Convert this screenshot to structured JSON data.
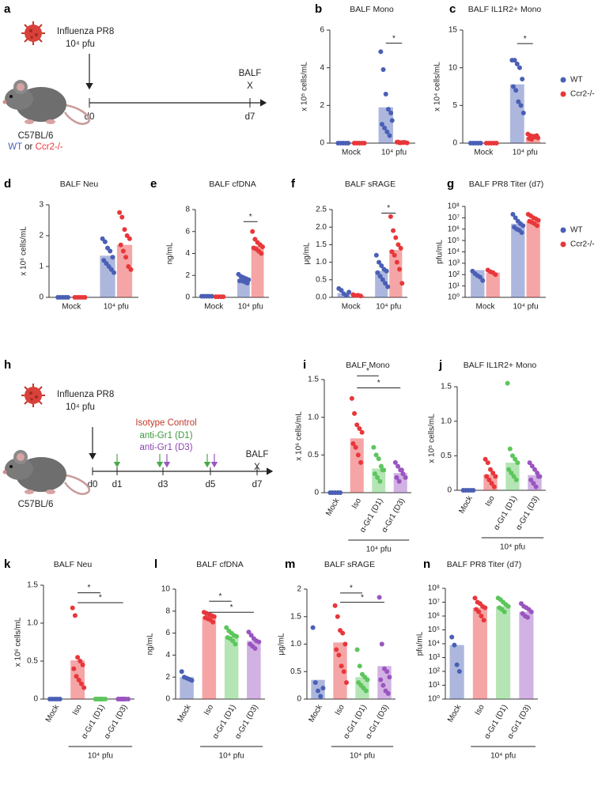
{
  "schematics": [
    {
      "panel": "a",
      "virus": "Influenza PR8",
      "dose": "10⁴ pfu",
      "endpoint": "BALF",
      "endpoint_mark": "X",
      "timepoints": [
        "d0",
        "d7"
      ],
      "strain": "C57BL/6",
      "genotype_wt": "WT",
      "genotype_or": "or",
      "genotype_ko": "Ccr2-/-"
    },
    {
      "panel": "h",
      "virus": "Influenza PR8",
      "dose": "10⁴ pfu",
      "treatments": [
        "Isotype Control",
        "anti-Gr1 (D1)",
        "anti-Gr1 (D3)"
      ],
      "endpoint": "BALF",
      "endpoint_mark": "X",
      "timepoints": [
        "d0",
        "d1",
        "d3",
        "d5",
        "d7"
      ],
      "strain": "C57BL/6"
    }
  ],
  "chart_data": [
    {
      "type": "bar",
      "panel": "b",
      "title": "BALF Mono",
      "y_label": "x 10⁵ cells/mL",
      "categories": [
        "Mock",
        "10⁴ pfu"
      ],
      "ylim": [
        0,
        6
      ],
      "yticks": [
        0,
        2,
        4,
        6
      ],
      "series": [
        {
          "color": "#4a5fb5",
          "values": [
            0,
            1.9
          ],
          "points": [
            [
              0,
              0,
              0,
              0,
              0
            ],
            [
              4.85,
              3.9,
              2.6,
              1.8,
              1.6,
              1.0,
              0.8,
              0.6,
              0.4,
              1.2
            ]
          ]
        },
        {
          "color": "#e8373a",
          "values": [
            0,
            0.03
          ],
          "points": [
            [
              0,
              0,
              0,
              0,
              0
            ],
            [
              0.05,
              0.02,
              0.03,
              0.04,
              0.01,
              0.06,
              0.02,
              0.03
            ]
          ]
        }
      ],
      "significance": [
        {
          "category": 1,
          "label": "*",
          "y": 5.3
        }
      ]
    },
    {
      "type": "bar",
      "panel": "c",
      "title": "BALF IL1R2+ Mono",
      "y_label": "x 10⁴ cells/mL",
      "categories": [
        "Mock",
        "10⁴ pfu"
      ],
      "ylim": [
        0,
        15
      ],
      "yticks": [
        0,
        5,
        10,
        15
      ],
      "legend": true,
      "series": [
        {
          "name": "WT",
          "color": "#4a5fb5",
          "values": [
            0,
            7.8
          ],
          "points": [
            [
              0,
              0,
              0,
              0,
              0
            ],
            [
              11,
              11,
              10.5,
              10,
              8.5,
              7.5,
              7,
              5.5,
              5,
              4
            ]
          ]
        },
        {
          "name": "Ccr2-/-",
          "color": "#e8373a",
          "values": [
            0,
            0.8
          ],
          "points": [
            [
              0,
              0,
              0,
              0,
              0
            ],
            [
              1.2,
              1.0,
              0.9,
              0.8,
              0.7,
              0.6,
              0.5,
              0.9,
              1.0
            ]
          ]
        }
      ],
      "significance": [
        {
          "category": 1,
          "label": "*",
          "y": 13.2
        }
      ]
    },
    {
      "type": "bar",
      "panel": "d",
      "title": "BALF Neu",
      "y_label": "x 10⁶ cells/mL",
      "categories": [
        "Mock",
        "10⁴ pfu"
      ],
      "ylim": [
        0,
        3
      ],
      "yticks": [
        0,
        1,
        2,
        3
      ],
      "series": [
        {
          "color": "#4a5fb5",
          "values": [
            0,
            1.35
          ],
          "points": [
            [
              0,
              0,
              0,
              0,
              0
            ],
            [
              1.9,
              1.8,
              1.6,
              1.5,
              1.3,
              1.2,
              1.1,
              1.0,
              0.9,
              0.8
            ]
          ]
        },
        {
          "color": "#e8373a",
          "values": [
            0,
            1.7
          ],
          "points": [
            [
              0,
              0,
              0,
              0,
              0
            ],
            [
              2.75,
              2.6,
              2.2,
              2.0,
              1.9,
              1.7,
              1.5,
              1.3,
              1.0,
              0.9
            ]
          ]
        }
      ]
    },
    {
      "type": "bar",
      "panel": "e",
      "title": "BALF cfDNA",
      "y_label": "ng/mL",
      "categories": [
        "Mock",
        "10⁴ pfu"
      ],
      "ylim": [
        0,
        8
      ],
      "yticks": [
        0,
        2,
        4,
        6,
        8
      ],
      "series": [
        {
          "color": "#4a5fb5",
          "values": [
            0.1,
            1.7
          ],
          "points": [
            [
              0.1,
              0.1,
              0.1,
              0.1,
              0.1
            ],
            [
              2.1,
              1.9,
              1.8,
              1.7,
              1.6,
              1.5,
              1.5,
              1.4,
              1.3
            ]
          ]
        },
        {
          "color": "#e8373a",
          "values": [
            0.05,
            4.7
          ],
          "points": [
            [
              0.05,
              0.05,
              0.05,
              0.05
            ],
            [
              6.0,
              5.3,
              5.0,
              4.8,
              4.6,
              4.5,
              4.4,
              4.2,
              4.0
            ]
          ]
        }
      ],
      "significance": [
        {
          "category": 1,
          "label": "*",
          "y": 6.9
        }
      ]
    },
    {
      "type": "bar",
      "panel": "f",
      "title": "BALF sRAGE",
      "y_label": "μg/mL",
      "categories": [
        "Mock",
        "10⁴ pfu"
      ],
      "ylim": [
        0,
        2.5
      ],
      "yticks": [
        {
          "value": 0,
          "label": "0.0"
        },
        0.5,
        {
          "value": 1,
          "label": "1.0"
        },
        1.5,
        {
          "value": 2,
          "label": "2.0"
        },
        2.5
      ],
      "series": [
        {
          "color": "#4a5fb5",
          "values": [
            0.12,
            0.75
          ],
          "points": [
            [
              0.25,
              0.2,
              0.1,
              0.05,
              0.15
            ],
            [
              1.2,
              1.0,
              0.9,
              0.8,
              0.75,
              0.7,
              0.6,
              0.5,
              0.4,
              0.3
            ]
          ]
        },
        {
          "color": "#e8373a",
          "values": [
            0.05,
            1.35
          ],
          "points": [
            [
              0.08,
              0.05,
              0.06,
              0.04
            ],
            [
              2.3,
              1.9,
              1.7,
              1.5,
              1.4,
              1.3,
              1.2,
              1.0,
              0.8,
              0.4
            ]
          ]
        }
      ],
      "significance": [
        {
          "category": 1,
          "label": "*",
          "y": 2.4
        }
      ]
    },
    {
      "type": "bar",
      "panel": "g",
      "title": "BALF PR8 Titer (d7)",
      "y_label": "pfu/mL",
      "categories": [
        "Mock",
        "10⁴ pfu"
      ],
      "log_scale": true,
      "ylim": [
        1,
        100000000
      ],
      "legend": true,
      "yticks": [
        {
          "value": 1,
          "label": "10⁰"
        },
        {
          "value": 10,
          "label": "10¹"
        },
        {
          "value": 100,
          "label": "10²"
        },
        {
          "value": 1000,
          "label": "10³"
        },
        {
          "value": 10000,
          "label": "10⁴"
        },
        {
          "value": 100000,
          "label": "10⁵"
        },
        {
          "value": 1000000,
          "label": "10⁶"
        },
        {
          "value": 10000000,
          "label": "10⁷"
        },
        {
          "value": 100000000,
          "label": "10⁸"
        }
      ],
      "series": [
        {
          "name": "WT",
          "color": "#4a5fb5",
          "values": [
            250,
            3000000
          ],
          "points": [
            [
              200,
              120,
              80,
              60,
              30
            ],
            [
              20000000,
              10000000,
              5000000,
              3000000,
              2000000,
              1500000,
              1000000,
              800000,
              500000
            ]
          ]
        },
        {
          "name": "Ccr2-/-",
          "color": "#e8373a",
          "values": [
            150,
            5000000
          ],
          "points": [
            [
              250,
              180,
              150,
              100
            ],
            [
              20000000,
              15000000,
              10000000,
              8000000,
              6000000,
              5000000,
              4000000,
              3000000,
              2000000
            ]
          ]
        }
      ]
    },
    {
      "type": "bar",
      "panel": "i",
      "title": "BALF Mono",
      "y_label": "x 10⁶ cells/mL",
      "categories": [
        "Mock",
        "Iso",
        "α-Gr1 (D1)",
        "α-Gr1 (D3)"
      ],
      "colors": [
        "#4a5fb5",
        "#e8373a",
        "#5cc65c",
        "#9a55c0"
      ],
      "ylim": [
        0,
        1.5
      ],
      "yticks": [
        0,
        0.5,
        {
          "value": 1,
          "label": "1.0"
        },
        1.5
      ],
      "values": [
        0,
        0.72,
        0.32,
        0.26
      ],
      "points": [
        [
          0,
          0,
          0,
          0,
          0
        ],
        [
          1.25,
          1.05,
          0.9,
          0.85,
          0.8,
          0.65,
          0.6,
          0.5,
          0.4
        ],
        [
          0.6,
          0.5,
          0.45,
          0.35,
          0.3,
          0.25,
          0.2,
          0.15,
          0.3
        ],
        [
          0.4,
          0.35,
          0.3,
          0.25,
          0.2,
          0.2,
          0.15,
          0.3
        ]
      ],
      "significance": [
        {
          "from": 1,
          "to": 2,
          "label": "*",
          "y": 1.55
        },
        {
          "from": 1,
          "to": 3,
          "label": "*",
          "y": 1.39
        }
      ],
      "group": {
        "label": "10⁴ pfu",
        "from": 1,
        "to": 3
      }
    },
    {
      "type": "bar",
      "panel": "j",
      "title": "BALF IL1R2+ Mono",
      "y_label": "x 10⁵ cells/mL",
      "categories": [
        "Mock",
        "Iso",
        "α-Gr1 (D1)",
        "α-Gr1 (D3)"
      ],
      "colors": [
        "#4a5fb5",
        "#e8373a",
        "#5cc65c",
        "#9a55c0"
      ],
      "ylim": [
        0,
        1.5
      ],
      "yticks": [
        0,
        0.5,
        {
          "value": 1,
          "label": "1.0"
        },
        1.5
      ],
      "values": [
        0,
        0.23,
        0.4,
        0.22
      ],
      "points": [
        [
          0,
          0,
          0,
          0,
          0
        ],
        [
          0.45,
          0.4,
          0.3,
          0.25,
          0.2,
          0.2,
          0.15,
          0.1,
          0.05
        ],
        [
          1.55,
          0.6,
          0.5,
          0.45,
          0.4,
          0.3,
          0.25,
          0.2,
          0.15
        ],
        [
          0.4,
          0.35,
          0.3,
          0.25,
          0.2,
          0.15,
          0.1,
          0.05,
          0.2
        ]
      ],
      "group": {
        "label": "10⁴ pfu",
        "from": 1,
        "to": 3
      }
    },
    {
      "type": "bar",
      "panel": "k",
      "title": "BALF Neu",
      "y_label": "x 10⁶ cells/mL",
      "categories": [
        "Mock",
        "Iso",
        "α-Gr1 (D1)",
        "α-Gr1 (D3)"
      ],
      "colors": [
        "#4a5fb5",
        "#e8373a",
        "#5cc65c",
        "#9a55c0"
      ],
      "ylim": [
        0,
        1.5
      ],
      "yticks": [
        0,
        0.5,
        {
          "value": 1,
          "label": "1.0"
        },
        1.5
      ],
      "values": [
        0,
        0.51,
        0,
        0
      ],
      "points": [
        [
          0,
          0,
          0,
          0,
          0
        ],
        [
          1.2,
          1.1,
          0.55,
          0.5,
          0.45,
          0.4,
          0.3,
          0.25,
          0.2,
          0.15
        ],
        [
          0,
          0,
          0,
          0,
          0,
          0,
          0,
          0
        ],
        [
          0,
          0,
          0,
          0,
          0,
          0,
          0,
          0
        ]
      ],
      "significance": [
        {
          "from": 1,
          "to": 2,
          "label": "*",
          "y": 1.4
        },
        {
          "from": 1,
          "to": 3,
          "label": "*",
          "y": 1.27
        }
      ],
      "group": {
        "label": "10⁴ pfu",
        "from": 1,
        "to": 3
      }
    },
    {
      "type": "bar",
      "panel": "l",
      "title": "BALF cfDNA",
      "y_label": "ng/mL",
      "categories": [
        "Mock",
        "Iso",
        "α-Gr1 (D1)",
        "α-Gr1 (D3)"
      ],
      "colors": [
        "#4a5fb5",
        "#e8373a",
        "#5cc65c",
        "#9a55c0"
      ],
      "ylim": [
        0,
        10
      ],
      "yticks": [
        0,
        2,
        4,
        6,
        8,
        10
      ],
      "values": [
        2.0,
        7.5,
        5.7,
        5.3
      ],
      "points": [
        [
          2.5,
          2.0,
          1.9,
          1.8,
          1.7
        ],
        [
          7.9,
          7.8,
          7.7,
          7.6,
          7.5,
          7.4,
          7.3,
          7.2,
          7.0
        ],
        [
          6.5,
          6.2,
          6.0,
          5.8,
          5.7,
          5.6,
          5.5,
          5.3,
          5.0
        ],
        [
          6.1,
          5.8,
          5.5,
          5.3,
          5.2,
          5.0,
          4.8,
          4.6
        ]
      ],
      "significance": [
        {
          "from": 1,
          "to": 2,
          "label": "*",
          "y": 8.9
        },
        {
          "from": 1,
          "to": 3,
          "label": "*",
          "y": 7.9
        }
      ],
      "group": {
        "label": "10⁴ pfu",
        "from": 1,
        "to": 3
      }
    },
    {
      "type": "bar",
      "panel": "m",
      "title": "BALF sRAGE",
      "y_label": "μg/mL",
      "categories": [
        "Mock",
        "Iso",
        "α-Gr1 (D1)",
        "α-Gr1 (D3)"
      ],
      "colors": [
        "#4a5fb5",
        "#e8373a",
        "#5cc65c",
        "#9a55c0"
      ],
      "ylim": [
        0,
        2
      ],
      "yticks": [
        0,
        0.5,
        {
          "value": 1,
          "label": "1.0"
        },
        1.5,
        2
      ],
      "values": [
        0.35,
        1.03,
        0.4,
        0.6
      ],
      "points": [
        [
          1.3,
          0.3,
          0.15,
          0.05,
          0.2
        ],
        [
          1.7,
          1.5,
          1.25,
          1.2,
          1.0,
          0.9,
          0.8,
          0.6,
          0.5,
          0.3
        ],
        [
          0.9,
          0.6,
          0.45,
          0.4,
          0.35,
          0.3,
          0.25,
          0.2,
          0.15
        ],
        [
          1.85,
          1.0,
          0.55,
          0.5,
          0.4,
          0.35,
          0.25,
          0.15,
          0.1
        ]
      ],
      "significance": [
        {
          "from": 1,
          "to": 2,
          "label": "*",
          "y": 1.93
        },
        {
          "from": 1,
          "to": 3,
          "label": "*",
          "y": 1.76
        }
      ],
      "group": {
        "label": "10⁴ pfu",
        "from": 1,
        "to": 3
      }
    },
    {
      "type": "bar",
      "panel": "n",
      "title": "BALF PR8 Titer (d7)",
      "y_label": "pfu/mL",
      "categories": [
        "Mock",
        "Iso",
        "α-Gr1 (D1)",
        "α-Gr1 (D3)"
      ],
      "colors": [
        "#4a5fb5",
        "#e8373a",
        "#5cc65c",
        "#9a55c0"
      ],
      "log_scale": true,
      "ylim": [
        1,
        100000000
      ],
      "yticks": [
        {
          "value": 1,
          "label": "10⁰"
        },
        {
          "value": 10,
          "label": "10¹"
        },
        {
          "value": 100,
          "label": "10²"
        },
        {
          "value": 1000,
          "label": "10³"
        },
        {
          "value": 10000,
          "label": "10⁴"
        },
        {
          "value": 100000,
          "label": "10⁵"
        },
        {
          "value": 1000000,
          "label": "10⁶"
        },
        {
          "value": 10000000,
          "label": "10⁷"
        },
        {
          "value": 100000000,
          "label": "10⁸"
        }
      ],
      "values": [
        8000,
        4000000,
        5000000,
        2000000
      ],
      "points": [
        [
          30000,
          8000,
          300,
          100
        ],
        [
          20000000,
          10000000,
          8000000,
          5000000,
          4000000,
          3000000,
          2000000,
          1000000,
          500000
        ],
        [
          20000000,
          15000000,
          10000000,
          7000000,
          5000000,
          4000000,
          3000000,
          2000000
        ],
        [
          8000000,
          5000000,
          4000000,
          3000000,
          2000000,
          1500000,
          1000000,
          800000
        ]
      ],
      "group": {
        "label": "10⁴ pfu",
        "from": 1,
        "to": 3
      }
    }
  ]
}
